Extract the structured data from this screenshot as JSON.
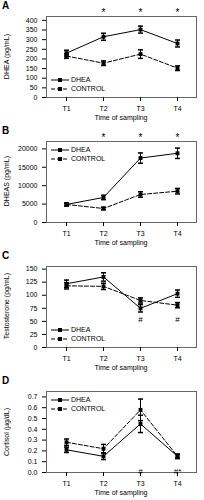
{
  "chart_data": [
    {
      "type": "line",
      "title": "A",
      "xlabel": "Time of sampling",
      "ylabel": "DHEA (pg/mL)",
      "categories": [
        "T1",
        "T2",
        "T3",
        "T4"
      ],
      "series": [
        {
          "name": "DHEA",
          "color": "#000000",
          "line_style": "solid",
          "marker": "square",
          "values": [
            230,
            315,
            352,
            280
          ],
          "errors": [
            15,
            18,
            18,
            18
          ]
        },
        {
          "name": "CONTROL",
          "color": "#000000",
          "line_style": "dashed",
          "marker": "square",
          "values": [
            215,
            178,
            225,
            152
          ],
          "errors": [
            12,
            12,
            22,
            12
          ]
        }
      ],
      "ylim": [
        0,
        420
      ],
      "yticks": [
        0,
        50,
        100,
        150,
        200,
        250,
        300,
        350,
        400
      ],
      "legend": "lower left",
      "annotations": [
        {
          "text": "*",
          "x": "T2"
        },
        {
          "text": "*",
          "x": "T3"
        },
        {
          "text": "*",
          "x": "T4"
        }
      ]
    },
    {
      "type": "line",
      "title": "B",
      "xlabel": "Time of sampling",
      "ylabel": "DHEAS (pg/mL)",
      "categories": [
        "T1",
        "T2",
        "T3",
        "T4"
      ],
      "series": [
        {
          "name": "DHEA",
          "color": "#000000",
          "line_style": "solid",
          "marker": "square",
          "values": [
            4900,
            6800,
            17500,
            18800
          ],
          "errors": [
            400,
            600,
            1400,
            1400
          ]
        },
        {
          "name": "CONTROL",
          "color": "#000000",
          "line_style": "dashed",
          "marker": "square",
          "values": [
            4900,
            3800,
            7600,
            8500
          ],
          "errors": [
            350,
            350,
            750,
            750
          ]
        }
      ],
      "ylim": [
        0,
        22000
      ],
      "yticks": [
        0,
        5000,
        10000,
        15000,
        20000
      ],
      "legend": "upper left",
      "annotations": [
        {
          "text": "*",
          "x": "T2"
        },
        {
          "text": "*",
          "x": "T3"
        },
        {
          "text": "*",
          "x": "T4"
        }
      ]
    },
    {
      "type": "line",
      "title": "C",
      "xlabel": "Time of sampling",
      "ylabel": "Testosterone (pg/mL)",
      "categories": [
        "T1",
        "T2",
        "T3",
        "T4"
      ],
      "series": [
        {
          "name": "DHEA",
          "color": "#000000",
          "line_style": "solid",
          "marker": "square",
          "values": [
            122,
            135,
            75,
            103
          ],
          "errors": [
            7,
            8,
            7,
            7
          ]
        },
        {
          "name": "CONTROL",
          "color": "#000000",
          "line_style": "dashed",
          "marker": "square",
          "values": [
            118,
            117,
            90,
            81
          ],
          "errors": [
            6,
            6,
            5,
            5
          ]
        }
      ],
      "ylim": [
        0,
        155
      ],
      "yticks": [
        0,
        25,
        50,
        75,
        100,
        125,
        150
      ],
      "legend": "lower left",
      "annotations": [
        {
          "text": "#",
          "x": "T3",
          "y": 60
        },
        {
          "text": "#",
          "x": "T4",
          "y": 60
        }
      ]
    },
    {
      "type": "line",
      "title": "D",
      "xlabel": "Time of sampling",
      "ylabel": "Cortisol (µg/dL)",
      "categories": [
        "T1",
        "T2",
        "T3",
        "T4"
      ],
      "series": [
        {
          "name": "DHEA",
          "color": "#000000",
          "line_style": "solid",
          "marker": "square",
          "values": [
            0.21,
            0.15,
            0.45,
            0.15
          ],
          "errors": [
            0.025,
            0.03,
            0.08,
            0.02
          ]
        },
        {
          "name": "CONTROL",
          "color": "#000000",
          "line_style": "dashed",
          "marker": "square",
          "values": [
            0.28,
            0.22,
            0.58,
            0.15
          ],
          "errors": [
            0.03,
            0.04,
            0.1,
            0.02
          ]
        }
      ],
      "ylim": [
        0,
        0.75
      ],
      "yticks": [
        {
          "value": 0.0,
          "label": "0.0"
        },
        0.1,
        0.2,
        0.3,
        0.4,
        0.5,
        0.6,
        0.7
      ],
      "legend": "upper left",
      "annotations": [
        {
          "text": "#",
          "x": "T3",
          "y": 0.04
        },
        {
          "text": "#*",
          "x": "T4",
          "y": 0.04
        }
      ]
    }
  ]
}
